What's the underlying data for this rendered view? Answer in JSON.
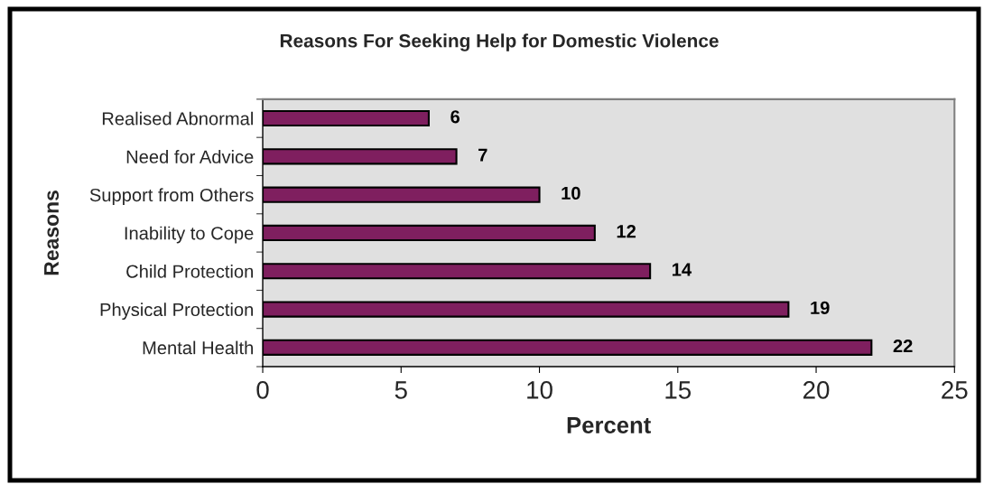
{
  "chart_data": {
    "type": "bar",
    "orientation": "horizontal",
    "title": "Reasons For Seeking Help for Domestic Violence",
    "xlabel": "Percent",
    "ylabel": "Reasons",
    "categories": [
      "Realised Abnormal",
      "Need for Advice",
      "Support from Others",
      "Inability to Cope",
      "Child Protection",
      "Physical Protection",
      "Mental Health"
    ],
    "values": [
      6,
      7,
      10,
      12,
      14,
      19,
      22
    ],
    "color": "#7f1f5f",
    "xlim": [
      0,
      25
    ],
    "xticks": [
      0,
      5,
      10,
      15,
      20,
      25
    ],
    "data_labels": true,
    "grid": false
  }
}
